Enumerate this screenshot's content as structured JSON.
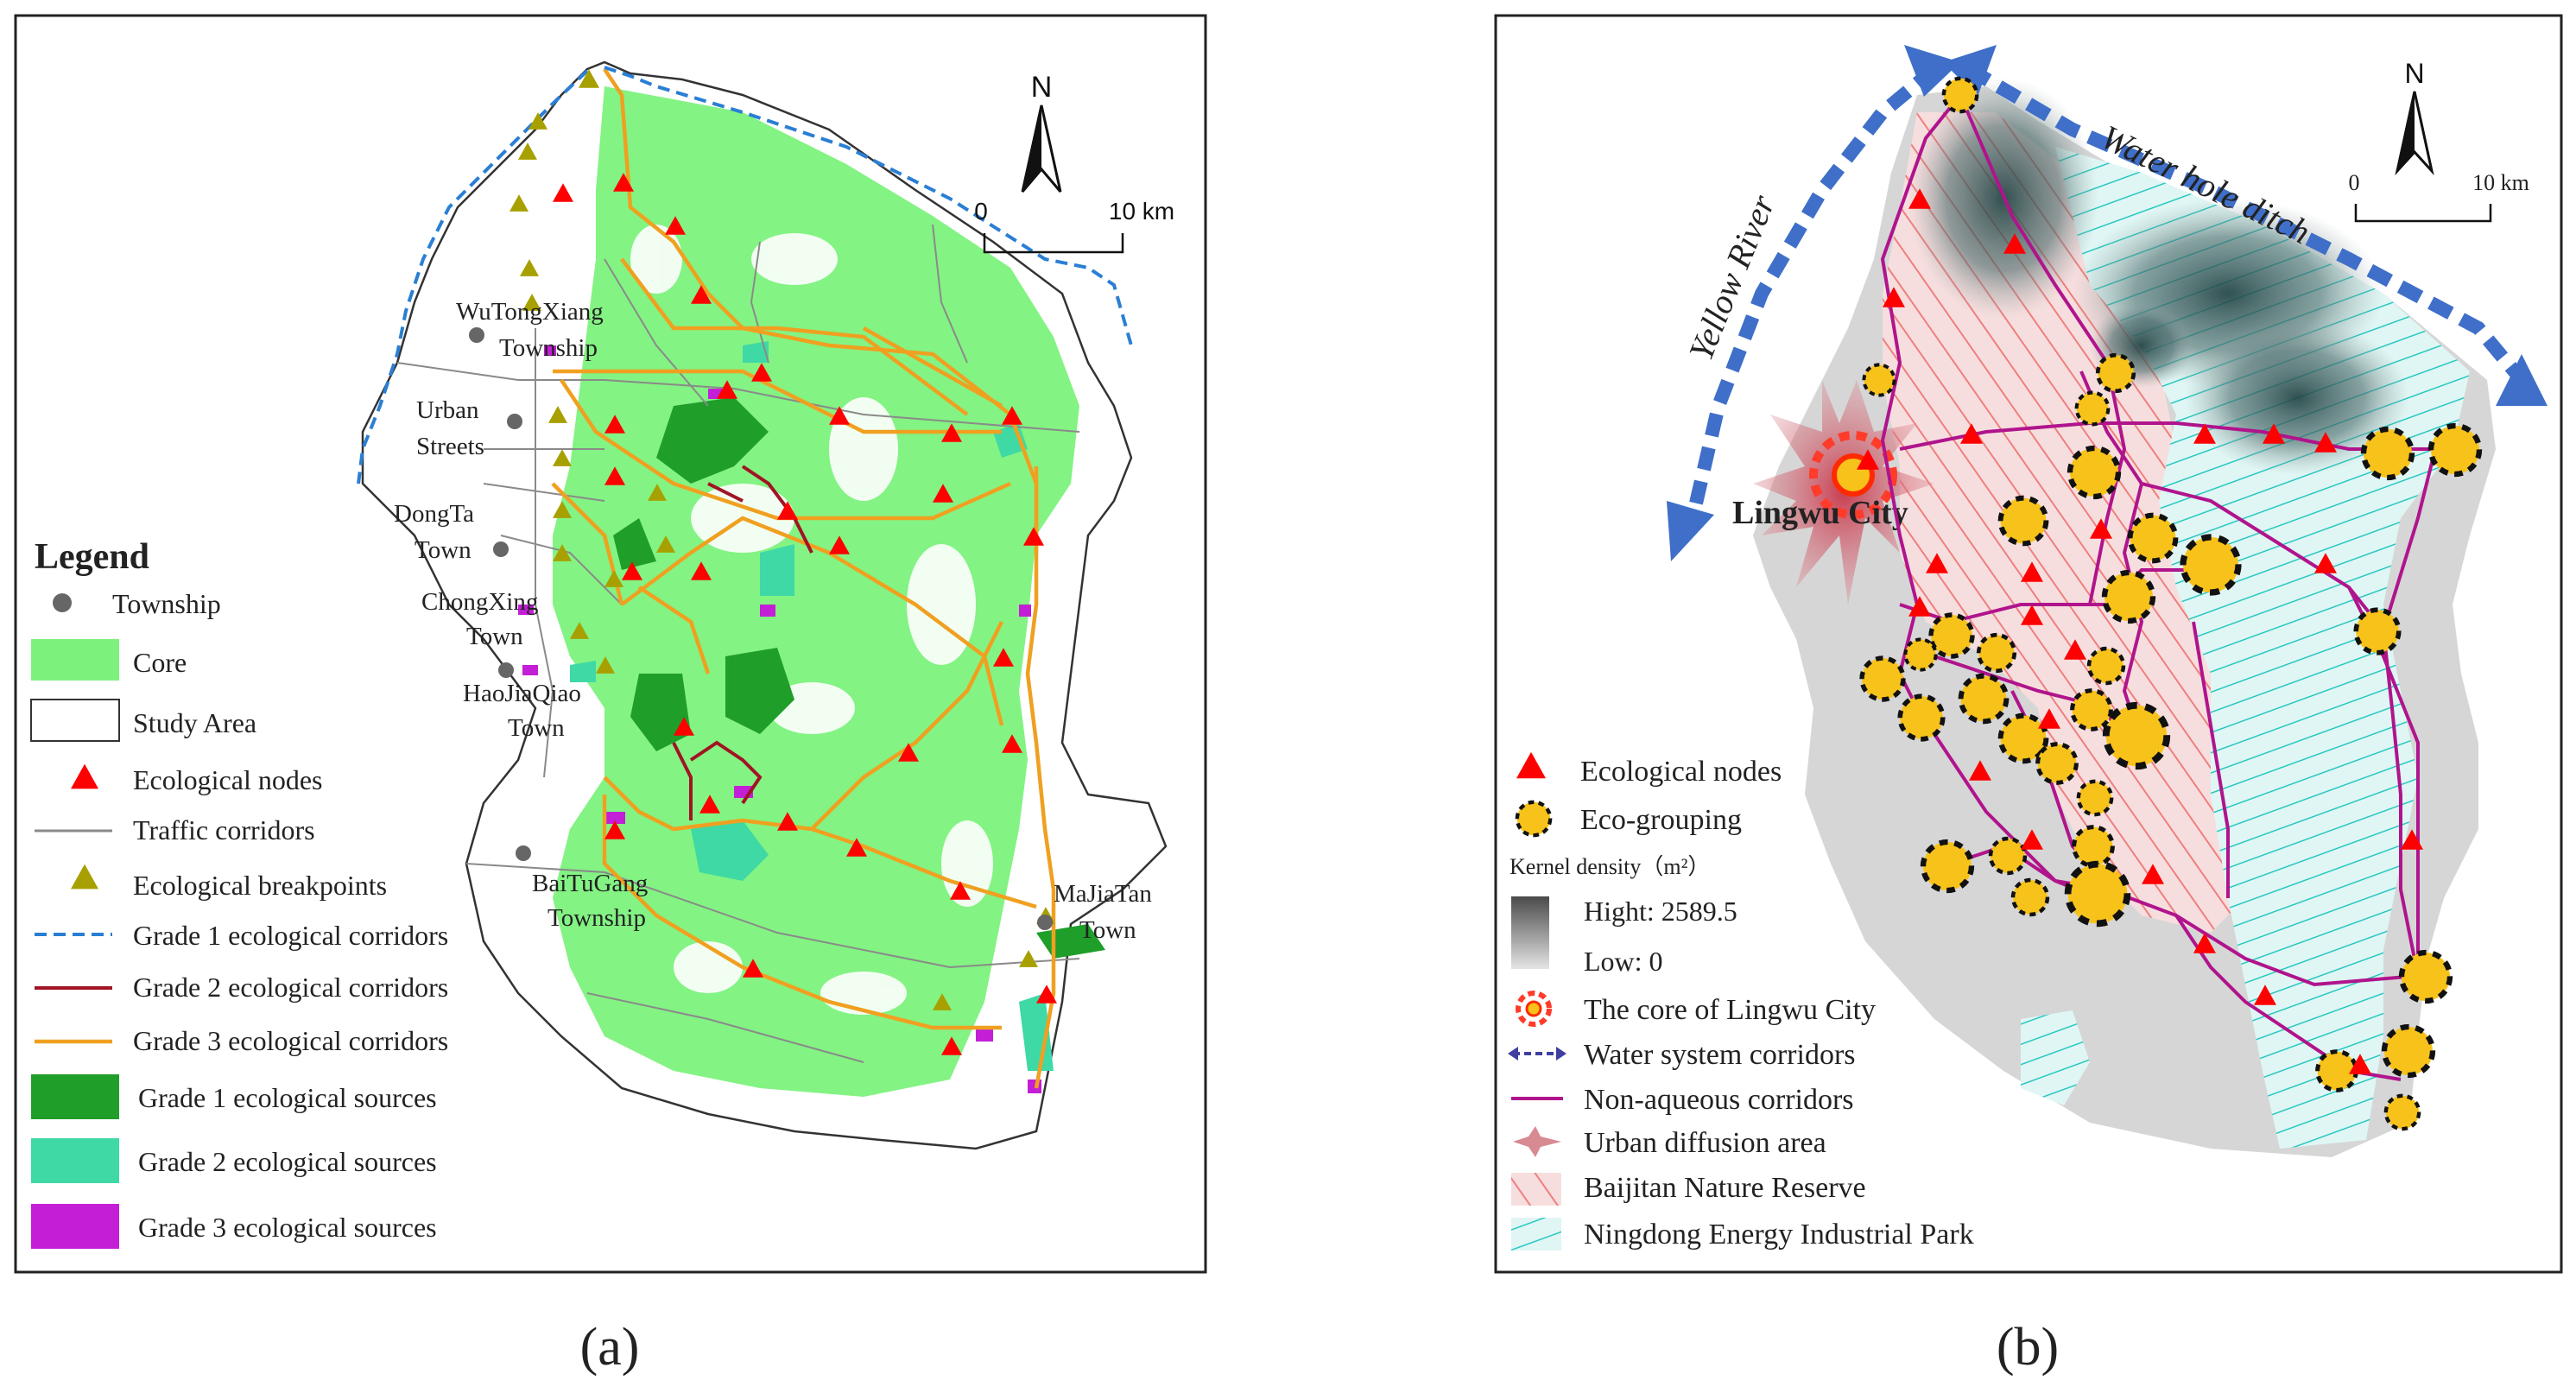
{
  "panel_a": {
    "caption": "(a)",
    "north": "N",
    "scale": {
      "start": "0",
      "end": "10 km"
    },
    "townships": [
      {
        "name": "WuTongXiang",
        "sub": "Township"
      },
      {
        "name": "Urban",
        "sub": "Streets"
      },
      {
        "name": "DongTa",
        "sub": "Town"
      },
      {
        "name": "ChongXing",
        "sub": "Town"
      },
      {
        "name": "HaoJiaQiao",
        "sub": "Town"
      },
      {
        "name": "BaiTuGang",
        "sub": "Township"
      },
      {
        "name": "MaJiaTan",
        "sub": "Town"
      }
    ],
    "legend": {
      "title": "Legend",
      "items": [
        "Township",
        "Core",
        "Study Area",
        "Ecological nodes",
        "Traffic corridors",
        "Ecological breakpoints",
        "Grade 1 ecological corridors",
        "Grade 2 ecological corridors",
        "Grade 3 ecological corridors",
        "Grade 1 ecological sources",
        "Grade 2 ecological sources",
        "Grade 3 ecological sources"
      ]
    }
  },
  "panel_b": {
    "caption": "(b)",
    "north": "N",
    "scale": {
      "start": "0",
      "end": "10 km"
    },
    "city": "Lingwu City",
    "rivers": [
      "Yellow River",
      "Water hole ditch"
    ],
    "legend": {
      "items": [
        "Ecological nodes",
        "Eco-grouping"
      ],
      "kernel_title": "Kernel density（m²）",
      "kernel_high": "Hight: 2589.5",
      "kernel_low": "Low: 0",
      "items2": [
        "The core of Lingwu City",
        "Water system corridors",
        "Non-aqueous corridors",
        "Urban diffusion area",
        "Baijitan Nature Reserve",
        "Ningdong Energy Industrial Park"
      ]
    }
  },
  "colors": {
    "core": "#7cf27c",
    "grade1_source": "#1f9e2a",
    "grade2_source": "#3fd9a5",
    "grade3_source": "#c21fd6",
    "eco_node": "#ff0000",
    "breakpoint": "#a8a000",
    "grade1_corridor": "#2a7fd4",
    "grade2_corridor": "#a01424",
    "grade3_corridor": "#f0a020",
    "eco_grouping": "#f7c21a",
    "non_aqueous": "#b0148c",
    "water_arrow": "#3f6fc8",
    "reserve_hatch": "#f08c8c",
    "park_hatch": "#2ed0c8"
  }
}
